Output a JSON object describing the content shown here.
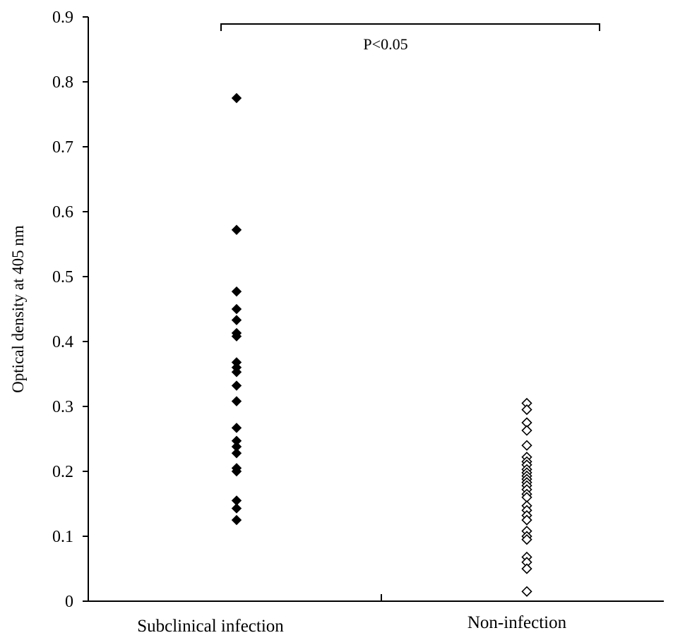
{
  "chart_data": {
    "type": "scatter",
    "ylabel": "Optical density at 405 nm",
    "ylim": [
      0,
      0.9
    ],
    "yticks": [
      0,
      0.1,
      0.2,
      0.3,
      0.4,
      0.5,
      0.6,
      0.7,
      0.8,
      0.9
    ],
    "ytick_labels": [
      "0",
      "0.1",
      "0.2",
      "0.3",
      "0.4",
      "0.5",
      "0.6",
      "0.7",
      "0.8",
      "0.9"
    ],
    "categories": [
      "Subclinical infection",
      "Non-infection"
    ],
    "grid": false,
    "series": [
      {
        "category": "Subclinical infection",
        "marker": "filled-diamond",
        "color": "#000000",
        "values": [
          0.775,
          0.572,
          0.477,
          0.45,
          0.433,
          0.413,
          0.408,
          0.368,
          0.36,
          0.353,
          0.332,
          0.308,
          0.267,
          0.247,
          0.238,
          0.228,
          0.205,
          0.2,
          0.155,
          0.143,
          0.125
        ]
      },
      {
        "category": "Non-infection",
        "marker": "open-diamond",
        "color": "#000000",
        "values": [
          0.305,
          0.295,
          0.275,
          0.263,
          0.24,
          0.222,
          0.215,
          0.21,
          0.203,
          0.198,
          0.193,
          0.188,
          0.183,
          0.178,
          0.172,
          0.165,
          0.16,
          0.147,
          0.14,
          0.132,
          0.125,
          0.108,
          0.1,
          0.095,
          0.068,
          0.06,
          0.05,
          0.015
        ]
      }
    ],
    "annotations": [
      {
        "text": "P<0.05",
        "type": "bracket",
        "spans": [
          "Subclinical infection",
          "Non-infection"
        ]
      }
    ]
  }
}
